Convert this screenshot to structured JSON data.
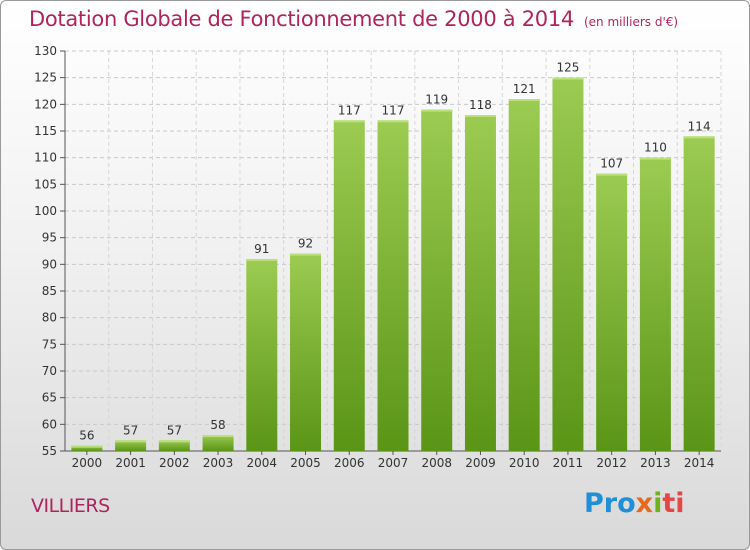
{
  "page": {
    "title": "Dotation Globale de Fonctionnement de 2000 à 2014",
    "subtitle": "(en milliers d'€)",
    "commune": "VILLIERS",
    "brand": "Proxiti",
    "brand_parts": [
      "Pro",
      "x",
      "i",
      "ti"
    ]
  },
  "colors": {
    "title": "#b0245d",
    "bar_light": "#9ccb52",
    "bar_dark": "#5a9516",
    "axis": "#555555"
  },
  "chart_data": {
    "type": "bar",
    "title": "Dotation Globale de Fonctionnement de 2000 à 2014",
    "subtitle": "(en milliers d'€)",
    "xlabel": "",
    "ylabel": "",
    "categories": [
      "2000",
      "2001",
      "2002",
      "2003",
      "2004",
      "2005",
      "2006",
      "2007",
      "2008",
      "2009",
      "2010",
      "2011",
      "2012",
      "2013",
      "2014"
    ],
    "values": [
      56,
      57,
      57,
      58,
      91,
      92,
      117,
      117,
      119,
      118,
      121,
      125,
      107,
      110,
      114
    ],
    "ylim": [
      55,
      130
    ],
    "yticks": [
      55,
      60,
      65,
      70,
      75,
      80,
      85,
      90,
      95,
      100,
      105,
      110,
      115,
      120,
      125,
      130
    ],
    "grid": true,
    "legend": "none"
  }
}
